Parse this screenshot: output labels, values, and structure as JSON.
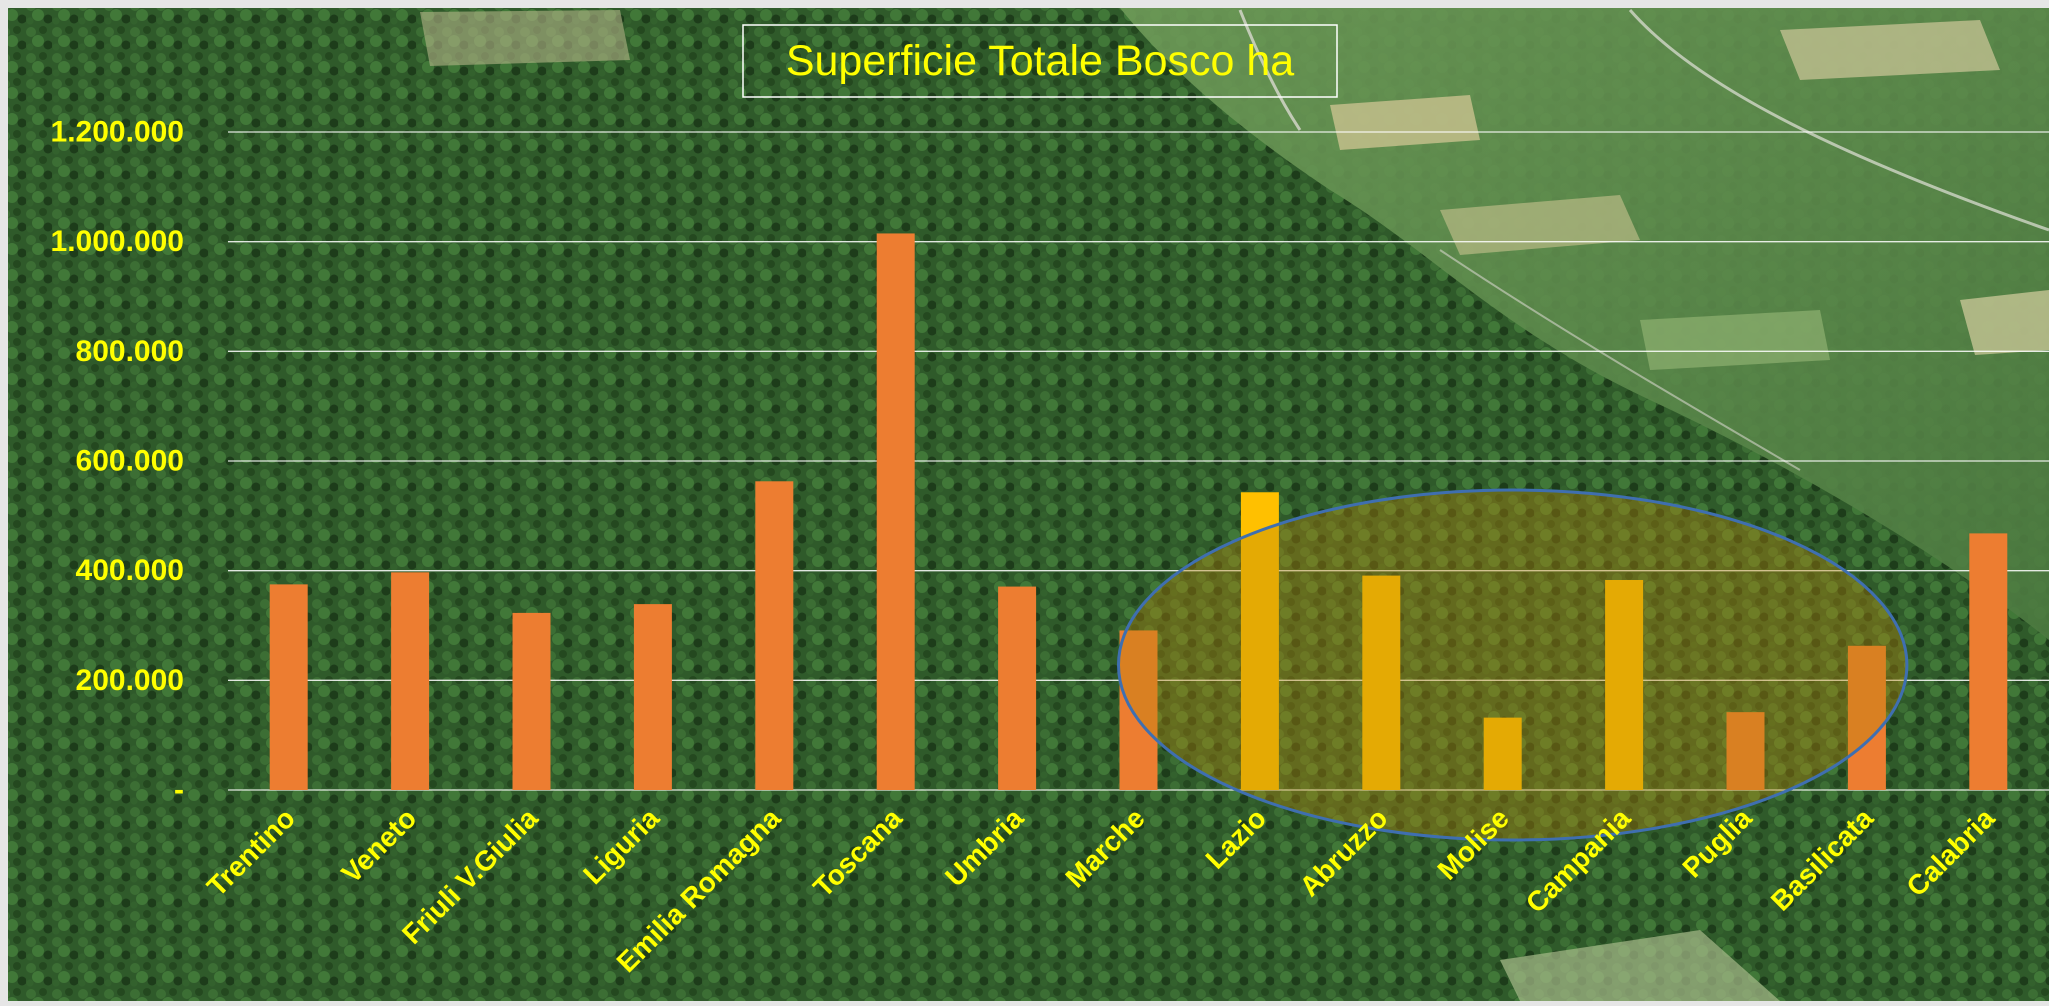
{
  "chart_data": {
    "type": "bar",
    "title": "Superficie Totale Bosco  ha",
    "xlabel": "",
    "ylabel": "",
    "ylim": [
      0,
      1200000
    ],
    "yticks": [
      0,
      200000,
      400000,
      600000,
      800000,
      1000000,
      1200000
    ],
    "ytick_labels": [
      "-",
      "200.000",
      "400.000",
      "600.000",
      "800.000",
      "1.000.000",
      "1.200.000"
    ],
    "grid": true,
    "categories": [
      "Trentino",
      "Veneto",
      "Friuli V.Giulia",
      "Liguria",
      "Emilia Romagna",
      "Toscana",
      "Umbria",
      "Marche",
      "Lazio",
      "Abruzzo",
      "Molise",
      "Campania",
      "Puglia",
      "Basilicata",
      "Calabria"
    ],
    "values": [
      375000,
      397000,
      323000,
      339000,
      563000,
      1015000,
      371000,
      291000,
      543000,
      391000,
      132000,
      383000,
      142000,
      263000,
      468000
    ],
    "highlighted": [
      "Lazio",
      "Abruzzo",
      "Molise",
      "Campania"
    ],
    "colors": {
      "bar": "#ED7D31",
      "bar_highlight": "#FFC000",
      "label_text": "#FFFF00",
      "title_text": "#FFFF00",
      "gridline": "#FFFFFF",
      "ellipse_stroke": "#3F6FB0",
      "ellipse_fill": "#B8860B"
    }
  }
}
